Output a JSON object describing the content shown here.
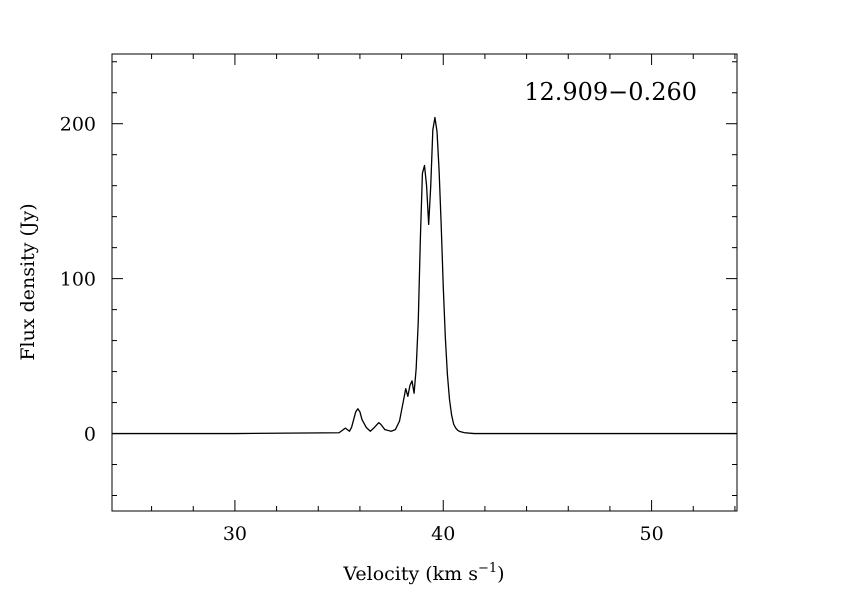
{
  "chart_data": {
    "type": "line",
    "title": "",
    "annotation": "12.909−0.260",
    "xlabel": "Velocity (km s",
    "xlabel_sup": "−1",
    "xlabel_close": ")",
    "ylabel": "Flux density (Jy)",
    "xlim": [
      24.1,
      54.1
    ],
    "ylim": [
      -50,
      245
    ],
    "x_ticks_major": [
      30,
      40,
      50
    ],
    "x_ticks_minor_step": 2,
    "x_tick_labels": [
      "30",
      "40",
      "50"
    ],
    "y_ticks_major": [
      0,
      100,
      200
    ],
    "y_ticks_minor_step": 20,
    "y_tick_labels": [
      "0",
      "100",
      "200"
    ],
    "grid": false,
    "series": [
      {
        "x": [
          24.1,
          30.0,
          35.0,
          35.3,
          35.5,
          35.6,
          35.7,
          35.8,
          35.9,
          36.0,
          36.1,
          36.3,
          36.5,
          36.7,
          36.9,
          37.0,
          37.2,
          37.5,
          37.7,
          37.9,
          38.0,
          38.2,
          38.3,
          38.4,
          38.5,
          38.6,
          38.7,
          38.8,
          38.9,
          39.0,
          39.1,
          39.2,
          39.3,
          39.4,
          39.5,
          39.6,
          39.7,
          39.8,
          39.9,
          40.0,
          40.1,
          40.2,
          40.3,
          40.4,
          40.5,
          40.6,
          40.7,
          40.8,
          41.0,
          41.2,
          41.5,
          42.0,
          45.0,
          50.0,
          54.1
        ],
        "y": [
          0,
          0,
          0.5,
          3.5,
          1.5,
          4,
          9,
          14,
          16,
          14,
          9,
          4,
          1.5,
          4,
          7,
          6,
          2.5,
          1.5,
          2.5,
          8,
          15,
          29,
          24,
          31,
          34,
          26,
          42,
          72,
          125,
          168,
          173,
          160,
          135,
          160,
          196,
          204,
          195,
          170,
          135,
          95,
          62,
          38,
          22,
          12,
          6,
          3.5,
          2,
          1.3,
          0.6,
          0.3,
          0,
          0,
          0,
          0,
          0
        ]
      }
    ]
  }
}
